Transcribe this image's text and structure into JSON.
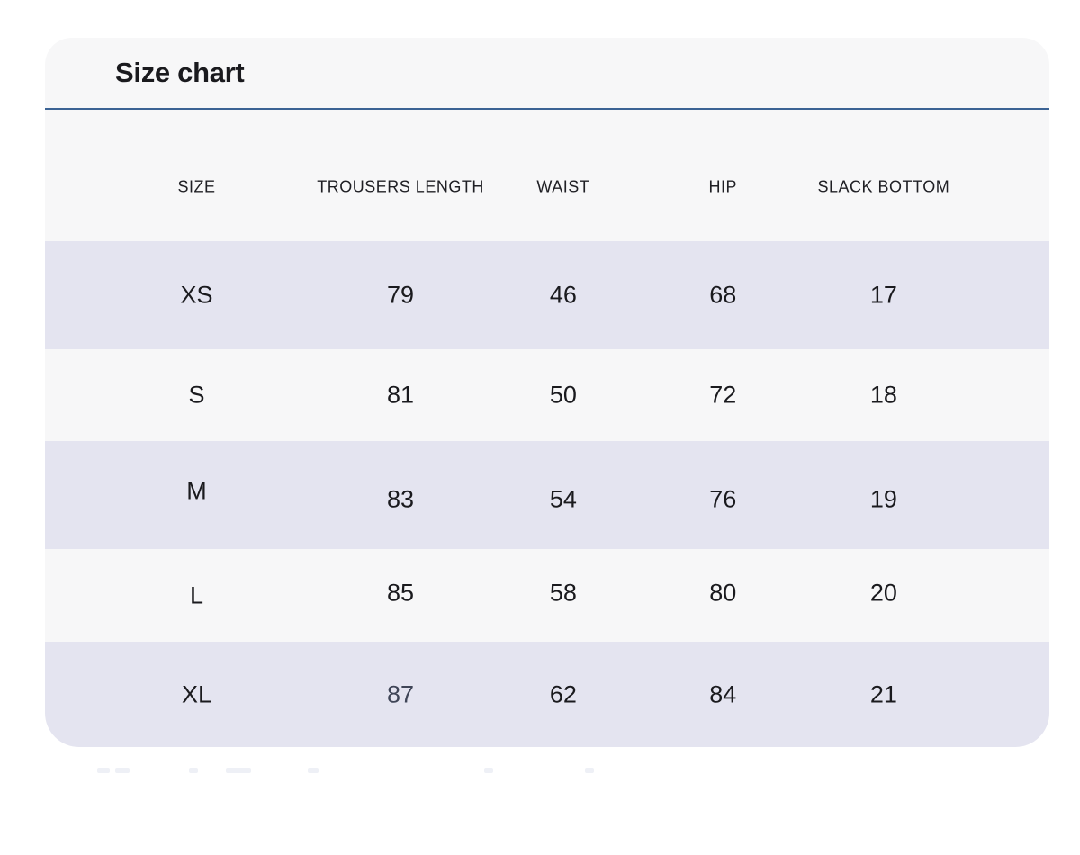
{
  "card": {
    "title": "Size chart"
  },
  "colors": {
    "card_background": "#f7f7f8",
    "divider_blue": "#3b6394",
    "row_highlight": "#e4e4f0",
    "text_primary": "#1a1a1e",
    "muted_value": "#3f4557"
  },
  "size_table": {
    "columns": [
      "SIZE",
      "TROUSERS LENGTH",
      "WAIST",
      "HIP",
      "SLACK BOTTOM"
    ],
    "rows": [
      {
        "size": "XS",
        "trousers_length": "79",
        "waist": "46",
        "hip": "68",
        "slack_bottom": "17"
      },
      {
        "size": "S",
        "trousers_length": "81",
        "waist": "50",
        "hip": "72",
        "slack_bottom": "18"
      },
      {
        "size": "M",
        "trousers_length": "83",
        "waist": "54",
        "hip": "76",
        "slack_bottom": "19"
      },
      {
        "size": "L",
        "trousers_length": "85",
        "waist": "58",
        "hip": "80",
        "slack_bottom": "20"
      },
      {
        "size": "XL",
        "trousers_length": "87",
        "waist": "62",
        "hip": "84",
        "slack_bottom": "21"
      }
    ]
  }
}
